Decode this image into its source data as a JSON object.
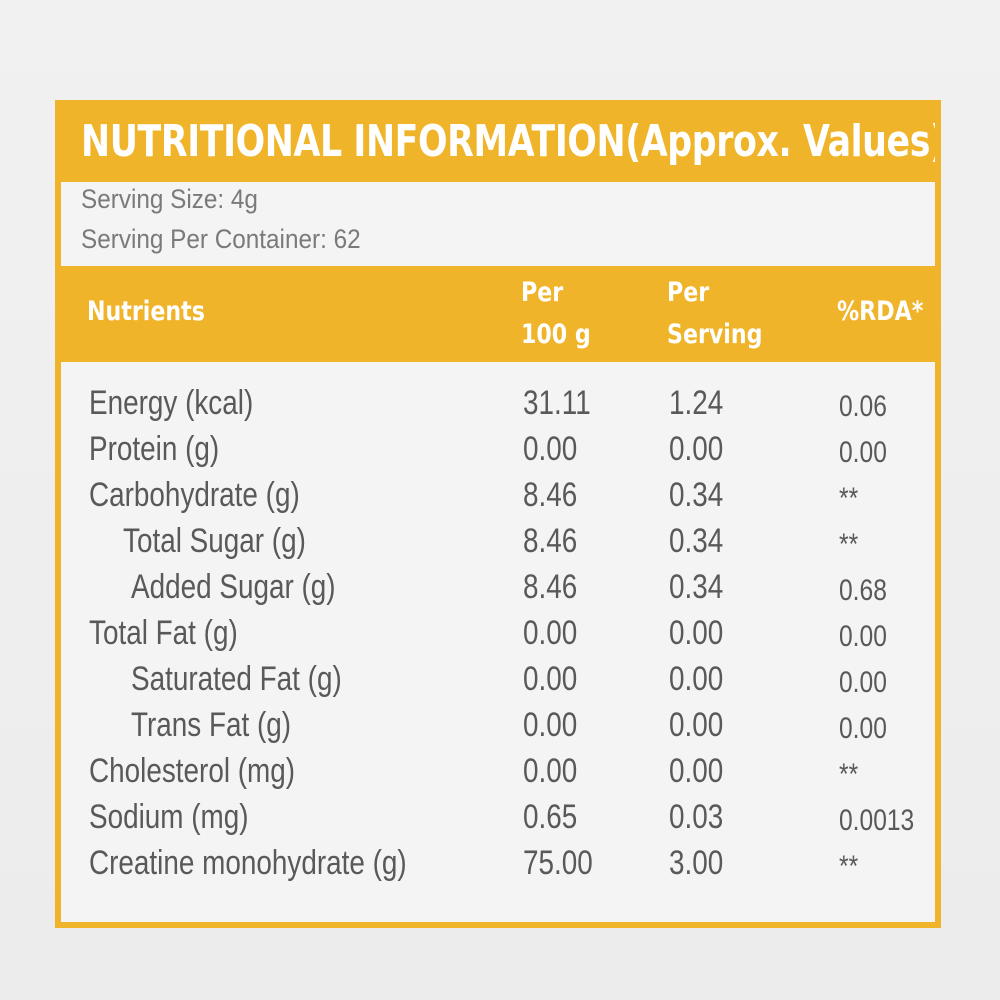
{
  "title": "NUTRITIONAL INFORMATION(Approx. Values)",
  "serving_size": "Serving Size: 4g",
  "serving_per_container": "Serving Per Container: 62",
  "columns": {
    "nutrients": "Nutrients",
    "per_100g_line1": "Per",
    "per_100g_line2": "100 g",
    "per_serving_line1": "Per",
    "per_serving_line2": "Serving",
    "rda": "%RDA*"
  },
  "rows": [
    {
      "name": "Energy (kcal)",
      "per_100g": "31.11",
      "per_serving": "1.24",
      "rda": "0.06"
    },
    {
      "name": "Protein (g)",
      "per_100g": "0.00",
      "per_serving": "0.00",
      "rda": "0.00"
    },
    {
      "name": "Carbohydrate (g)",
      "per_100g": "8.46",
      "per_serving": "0.34",
      "rda": "**"
    },
    {
      "name": "Total Sugar (g)",
      "per_100g": "8.46",
      "per_serving": "0.34",
      "rda": "**"
    },
    {
      "name": "Added Sugar (g)",
      "per_100g": "8.46",
      "per_serving": "0.34",
      "rda": "0.68"
    },
    {
      "name": "Total Fat (g)",
      "per_100g": "0.00",
      "per_serving": "0.00",
      "rda": "0.00"
    },
    {
      "name": "Saturated Fat (g)",
      "per_100g": "0.00",
      "per_serving": "0.00",
      "rda": "0.00"
    },
    {
      "name": "Trans Fat (g)",
      "per_100g": "0.00",
      "per_serving": "0.00",
      "rda": "0.00"
    },
    {
      "name": "Cholesterol (mg)",
      "per_100g": "0.00",
      "per_serving": "0.00",
      "rda": "**"
    },
    {
      "name": "Sodium (mg)",
      "per_100g": "0.65",
      "per_serving": "0.03",
      "rda": "0.0013"
    },
    {
      "name": "Creatine monohydrate (g)",
      "per_100g": "75.00",
      "per_serving": "3.00",
      "rda": "**"
    }
  ],
  "colors": {
    "accent": "#efb42a",
    "text": "#595959",
    "label_background": "#f4f4f4"
  }
}
